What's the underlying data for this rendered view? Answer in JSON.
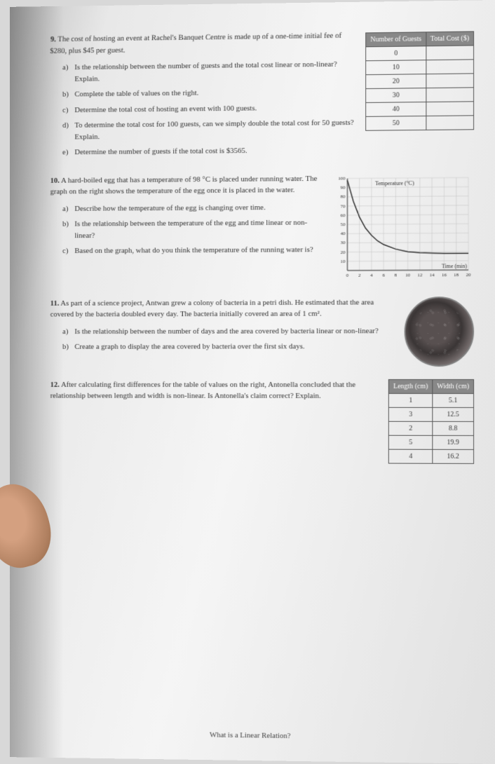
{
  "q9": {
    "number": "9.",
    "intro": "The cost of hosting an event at Rachel's Banquet Centre is made up of a one-time initial fee of $280, plus $45 per guest.",
    "a_label": "a)",
    "a": "Is the relationship between the number of guests and the total cost linear or non-linear? Explain.",
    "b_label": "b)",
    "b": "Complete the table of values on the right.",
    "c_label": "c)",
    "c": "Determine the total cost of hosting an event with 100 guests.",
    "d_label": "d)",
    "d": "To determine the total cost for 100 guests, can we simply double the total cost for 50 guests? Explain.",
    "e_label": "e)",
    "e": "Determine the number of guests if the total cost is $3565.",
    "table": {
      "h1": "Number of Guests",
      "h2": "Total Cost ($)",
      "rows": [
        "0",
        "10",
        "20",
        "30",
        "40",
        "50"
      ]
    }
  },
  "q10": {
    "number": "10.",
    "intro": "A hard-boiled egg that has a temperature of 98 °C is placed under running water. The graph on the right shows the temperature of the egg once it is placed in the water.",
    "a_label": "a)",
    "a": "Describe how the temperature of the egg is changing over time.",
    "b_label": "b)",
    "b": "Is the relationship between the temperature of the egg and time linear or non-linear?",
    "c_label": "c)",
    "c": "Based on the graph, what do you think the temperature of the running water is?",
    "chart": {
      "ylabel": "Temperature (°C)",
      "xlabel": "Time (min)",
      "yticks": [
        0,
        10,
        20,
        30,
        40,
        50,
        60,
        70,
        80,
        90,
        100
      ],
      "xticks": [
        0,
        2,
        4,
        6,
        8,
        10,
        12,
        14,
        16,
        18,
        20
      ],
      "curve": [
        [
          0,
          98
        ],
        [
          1,
          75
        ],
        [
          2,
          58
        ],
        [
          3,
          46
        ],
        [
          4,
          38
        ],
        [
          5,
          32
        ],
        [
          6,
          28
        ],
        [
          8,
          23
        ],
        [
          10,
          20
        ],
        [
          12,
          19
        ],
        [
          16,
          18
        ],
        [
          20,
          18
        ]
      ],
      "grid_color": "#c0c0c0",
      "line_color": "#303030",
      "line_width": 1.5
    }
  },
  "q11": {
    "number": "11.",
    "intro": "As part of a science project, Antwan grew a colony of bacteria in a petri dish. He estimated that the area covered by the bacteria doubled every day. The bacteria initially covered an area of 1 cm².",
    "a_label": "a)",
    "a": "Is the relationship between the number of days and the area covered by bacteria linear or non-linear?",
    "b_label": "b)",
    "b": "Create a graph to display the area covered by bacteria over the first six days."
  },
  "q12": {
    "number": "12.",
    "intro": "After calculating first differences for the table of values on the right, Antonella concluded that the relationship between length and width is non-linear. Is Antonella's claim correct? Explain.",
    "table": {
      "h1": "Length (cm)",
      "h2": "Width (cm)",
      "rows": [
        [
          "1",
          "5.1"
        ],
        [
          "3",
          "12.5"
        ],
        [
          "2",
          "8.8"
        ],
        [
          "5",
          "19.9"
        ],
        [
          "4",
          "16.2"
        ]
      ]
    }
  },
  "footer": "What is a Linear Relation?"
}
